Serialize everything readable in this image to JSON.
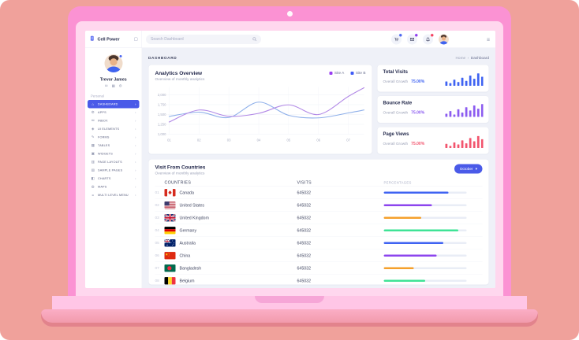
{
  "theme": {
    "primary": "#4a5ae8",
    "salmon_bg": "#f0a19b",
    "laptop_pink": "#fb92d3",
    "bezel_pink": "#ffd7ee",
    "content_bg": "#eff1f8"
  },
  "brand": {
    "name": "Cell Power"
  },
  "topbar": {
    "search_placeholder": "Search Dashboard",
    "notifications": [
      {
        "icon": "cart-icon",
        "badge_color": "#4b66f0"
      },
      {
        "icon": "mail-icon",
        "badge_color": "#8d3af0"
      },
      {
        "icon": "bell-icon",
        "badge_color": "#f43f5e"
      }
    ]
  },
  "user": {
    "name": "Trevor James",
    "profile_icons": [
      "mail-icon",
      "grid-icon",
      "gear-icon"
    ]
  },
  "sidebar": {
    "section_label": "Personal",
    "items": [
      {
        "label": "Dashboard",
        "icon": "home-icon",
        "active": true
      },
      {
        "label": "Apps",
        "icon": "gear-icon",
        "active": false
      },
      {
        "label": "Inbox",
        "icon": "mail-icon",
        "active": false
      },
      {
        "label": "UI Elements",
        "icon": "diamond-icon",
        "active": false
      },
      {
        "label": "Forms",
        "icon": "pencil-icon",
        "active": false
      },
      {
        "label": "Tables",
        "icon": "table-icon",
        "active": false
      },
      {
        "label": "Widgets",
        "icon": "widget-icon",
        "active": false
      },
      {
        "label": "Page Layouts",
        "icon": "layout-icon",
        "active": false
      },
      {
        "label": "Sample Pages",
        "icon": "pages-icon",
        "active": false
      },
      {
        "label": "Charts",
        "icon": "chart-icon",
        "active": false
      },
      {
        "label": "Maps",
        "icon": "map-icon",
        "active": false
      },
      {
        "label": "Multi Level Menu",
        "icon": "menu-icon",
        "active": false
      }
    ]
  },
  "breadcrumb": {
    "section": "Dashboard",
    "home": "Home",
    "current": "Dashboard"
  },
  "analytics": {
    "title": "Analytics Overview",
    "subtitle": "Overview of monthly analytics"
  },
  "chart_data": [
    {
      "type": "line",
      "title": "Analytics Overview",
      "x_labels": [
        "01",
        "02",
        "03",
        "04",
        "05",
        "06",
        "07"
      ],
      "ylim": [
        1000,
        2200
      ],
      "yticks": [
        2000,
        1750,
        1500,
        1250,
        1000
      ],
      "ytick_labels": [
        "2,000",
        "1,750",
        "1,500",
        "1,250",
        "1,000"
      ],
      "grid": true,
      "legend_position": "top-right",
      "series": [
        {
          "name": "Site A",
          "color": "#b289e6",
          "legend_color": "#9a3ef2",
          "values": [
            1310,
            1615,
            1455,
            1530,
            1745,
            1500,
            1960
          ]
        },
        {
          "name": "Site B",
          "color": "#8fb0ea",
          "legend_color": "#3f5bf6",
          "values": [
            1450,
            1560,
            1425,
            1815,
            1480,
            1415,
            1540
          ]
        }
      ]
    },
    {
      "type": "bar",
      "title": "Total Visits",
      "color": "#3f63f2",
      "values": [
        30,
        18,
        42,
        26,
        55,
        34,
        70,
        48,
        85,
        62
      ]
    },
    {
      "type": "bar",
      "title": "Bounce Rate",
      "color": "#8c5cf0",
      "values": [
        22,
        40,
        16,
        52,
        30,
        66,
        44,
        78,
        56,
        88
      ]
    },
    {
      "type": "bar",
      "title": "Page Views",
      "color": "#f2556e",
      "values": [
        28,
        14,
        38,
        24,
        52,
        32,
        68,
        46,
        82,
        60
      ]
    }
  ],
  "stats_cards": [
    {
      "title": "Total Visits",
      "growth_label": "Overall Growth",
      "growth_value": "75.00%",
      "color": "#3f63f2"
    },
    {
      "title": "Bounce Rate",
      "growth_label": "Overall Growth",
      "growth_value": "75.00%",
      "color": "#8c5cf0"
    },
    {
      "title": "Page Views",
      "growth_label": "Overall Growth",
      "growth_value": "75.00%",
      "color": "#f2556e"
    }
  ],
  "countries": {
    "title": "Visit From Countries",
    "subtitle": "Overview of monthly analytics",
    "period_button": "October",
    "headers": [
      "Countries",
      "Visits",
      "Percentages"
    ],
    "rows": [
      {
        "num": "01",
        "country": "Canada",
        "flag": "ca",
        "visits": "645032",
        "percent": 78,
        "bar_color": "#3f63f2"
      },
      {
        "num": "02",
        "country": "United States",
        "flag": "us",
        "visits": "645032",
        "percent": 58,
        "bar_color": "#8c45ee"
      },
      {
        "num": "03",
        "country": "United Kingdom",
        "flag": "gb",
        "visits": "645032",
        "percent": 45,
        "bar_color": "#f5a02c"
      },
      {
        "num": "04",
        "country": "Germany",
        "flag": "de",
        "visits": "645032",
        "percent": 90,
        "bar_color": "#3fe396"
      },
      {
        "num": "05",
        "country": "Australia",
        "flag": "au",
        "visits": "645032",
        "percent": 72,
        "bar_color": "#3f63f2"
      },
      {
        "num": "06",
        "country": "China",
        "flag": "cn",
        "visits": "645032",
        "percent": 64,
        "bar_color": "#8c45ee"
      },
      {
        "num": "07",
        "country": "Bangladesh",
        "flag": "bd",
        "visits": "645032",
        "percent": 36,
        "bar_color": "#f5a02c"
      },
      {
        "num": "08",
        "country": "Belgium",
        "flag": "be",
        "visits": "645032",
        "percent": 50,
        "bar_color": "#3fe396"
      }
    ]
  }
}
